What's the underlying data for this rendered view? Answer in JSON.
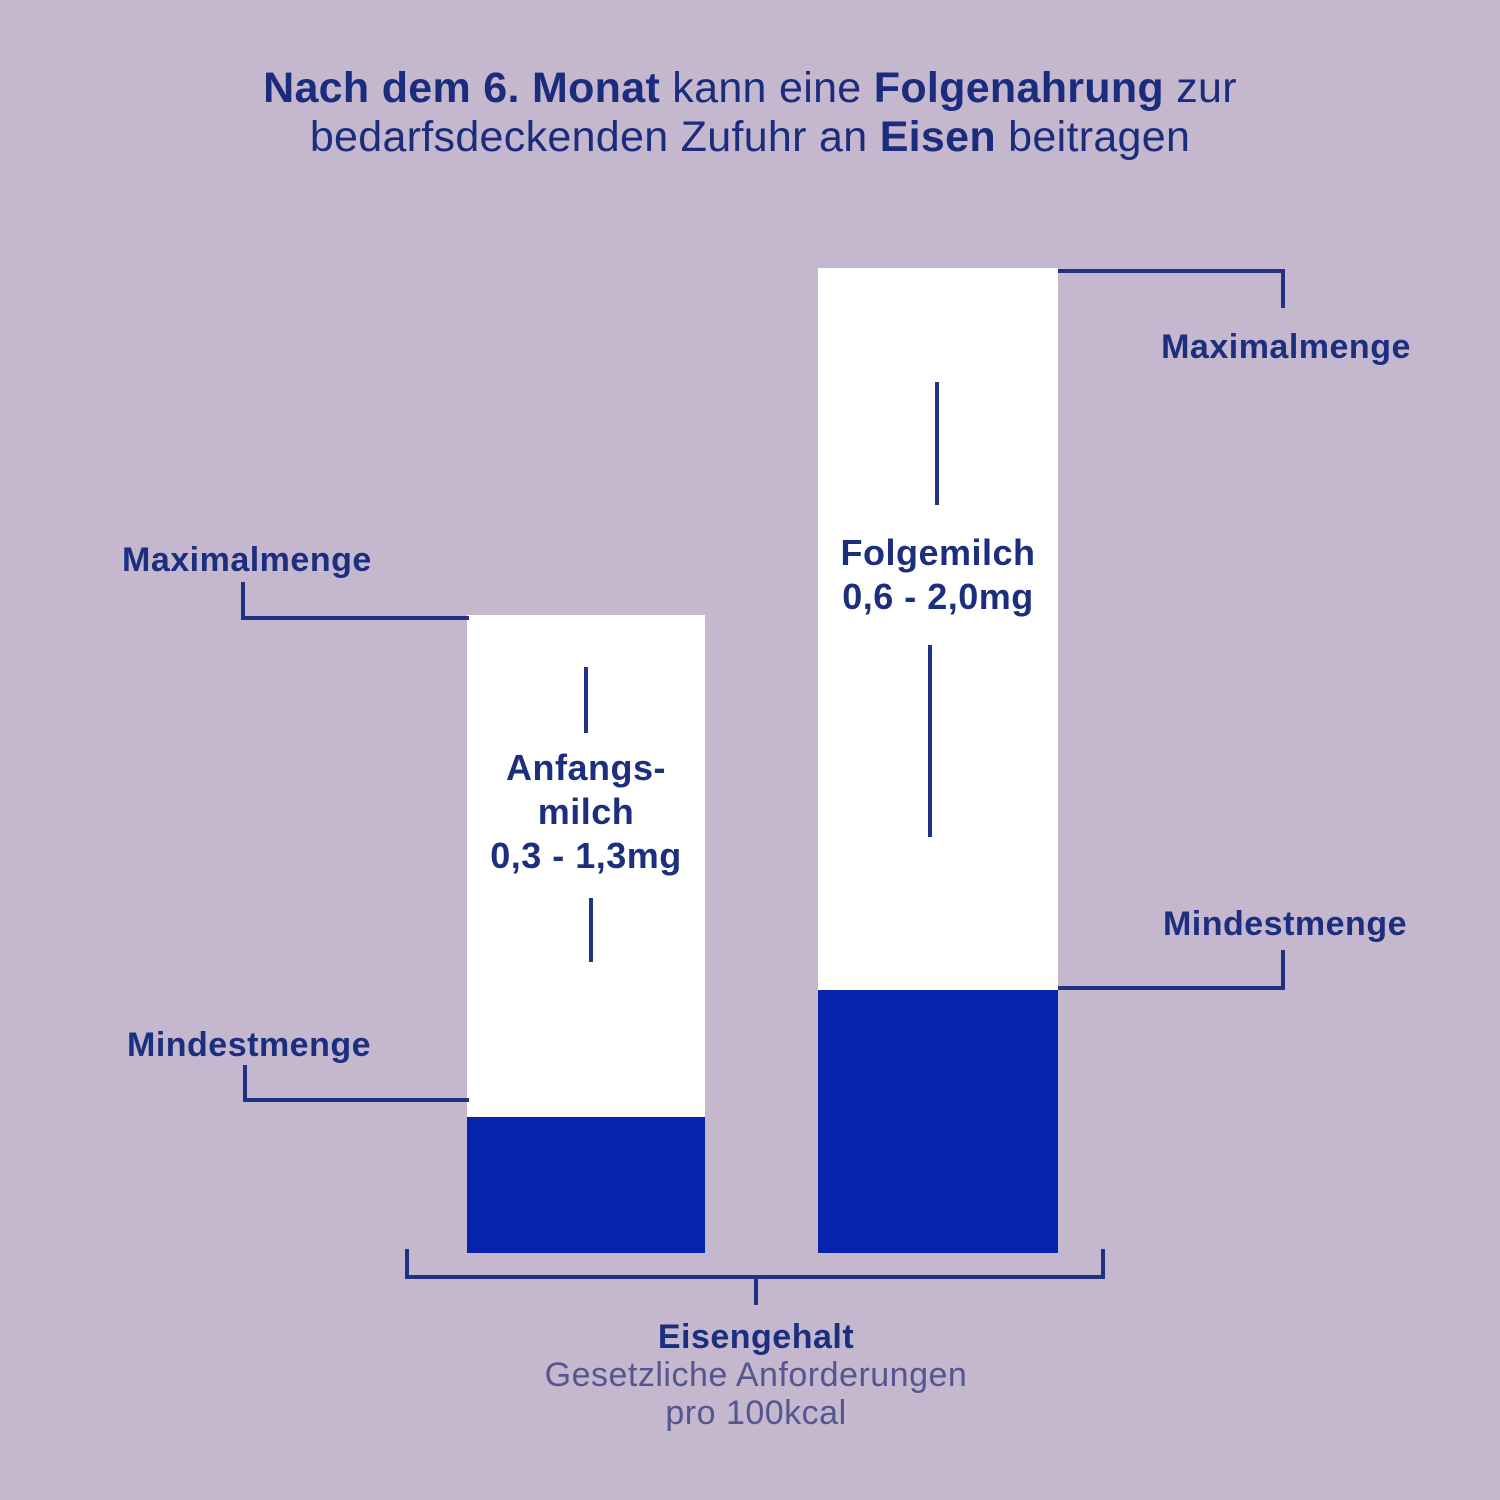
{
  "title": {
    "line1": {
      "b1": "Nach dem 6. Monat",
      "r1": " kann eine ",
      "b2": "Folgenahrung",
      "r2": " zur"
    },
    "line2": {
      "r1": "bedarfsdeckenden Zufuhr an ",
      "b1": "Eisen",
      "r2": " beitragen"
    }
  },
  "labels": {
    "max": "Maximalmenge",
    "min": "Mindestmenge"
  },
  "bars": [
    {
      "id": "anfangsmilch",
      "lines": [
        "Anfangs-",
        "milch",
        "0,3 - 1,3mg"
      ]
    },
    {
      "id": "folgemilch",
      "lines": [
        "Folgemilch",
        "0,6 - 2,0mg"
      ]
    }
  ],
  "footer": {
    "title": "Eisengehalt",
    "line2": "Gesetzliche Anforderungen",
    "line3": "pro 100kcal"
  },
  "colors": {
    "background": "#C4B7CE",
    "bar_background": "#FFFFFF",
    "bar_fill": "#0823AC",
    "line": "#223180",
    "text_dark": "#1C2E7E",
    "text_light": "#54578F"
  },
  "chart_data": {
    "type": "bar",
    "title": "Nach dem 6. Monat kann eine Folgenahrung zur bedarfsdeckenden Zufuhr an Eisen beitragen",
    "categories": [
      "Anfangsmilch",
      "Folgemilch"
    ],
    "series": [
      {
        "name": "Mindestmenge",
        "values": [
          0.3,
          0.6
        ]
      },
      {
        "name": "Maximalmenge",
        "values": [
          1.3,
          2.0
        ]
      }
    ],
    "unit": "mg",
    "value_labels": [
      "0,3 - 1,3mg",
      "0,6 - 2,0mg"
    ],
    "annotations": [
      "Maximalmenge",
      "Mindestmenge"
    ],
    "xlabel": "Eisengehalt — Gesetzliche Anforderungen pro 100kcal",
    "ylabel": "",
    "legend_position": "none",
    "grid": false,
    "ylim": [
      0,
      2.0
    ]
  }
}
